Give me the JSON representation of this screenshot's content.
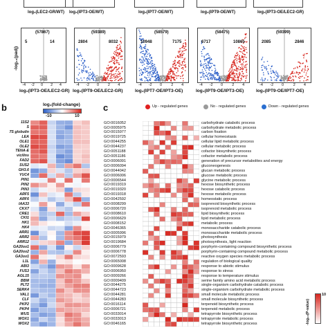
{
  "panel_a": {
    "top_row_labels": [
      {
        "text": "log₂(LEC2-GR/WT)"
      },
      {
        "text": "log₂(IPT3-OE/WT)"
      },
      {
        "text": "log₂(IPT7-OE/WT)"
      },
      {
        "text": "log₂(IPT9-OE/WT)"
      },
      {
        "text": "log₂(IPT3-OE/LEC2-GR)"
      }
    ],
    "y_axis_label": "-log₁₀(padj)",
    "volcanoes": [
      {
        "total": "(57867)",
        "down": "5",
        "up": "14",
        "xlabel": "log₂(IPT3-OE/LEC2-GR)",
        "xticks": [
          "-4",
          "-2",
          "0",
          "2",
          "4"
        ]
      },
      {
        "total": "(59389)",
        "down": "2804",
        "up": "8032",
        "xlabel": "log₂(IPT9-OE/LEC2-GR)",
        "xticks": [
          "-4",
          "-2",
          "0",
          "2",
          "4"
        ]
      },
      {
        "total": "(58579)",
        "down": "10948",
        "up": "7175",
        "xlabel": "log₂(IPT7-OE/IPT3-OE)",
        "xticks": [
          "-4",
          "-2",
          "0",
          "2",
          "4"
        ]
      },
      {
        "total": "(58475)",
        "down": "6717",
        "up": "10865",
        "xlabel": "log₂(IPT9-OE/IPT3-OE)",
        "xticks": [
          "-4",
          "-2",
          "0",
          "2",
          "4"
        ]
      },
      {
        "total": "(59399)",
        "down": "2085",
        "up": "2846",
        "xlabel": "log₂(IPT9-OE/IPT7-OE)",
        "xticks": [
          "-4",
          "-2",
          "0",
          "2",
          "4"
        ]
      }
    ]
  },
  "panel_b": {
    "letter": "b",
    "scale_title": "log₂(fold-change)",
    "scale_ticks": [
      "-10",
      "0",
      "10"
    ],
    "genes": [
      "11S2",
      "S",
      "7S globulin",
      "LEA",
      "OLE1",
      "OLE2",
      "TENA-E",
      "vicilins",
      "FAD2",
      "SUS2",
      "GH3.6",
      "YUC4",
      "PIN1",
      "PIN2",
      "PIN3",
      "ARF5",
      "ARF6",
      "IAA33",
      "CKX7",
      "CRE1",
      "CKI1",
      "HK1",
      "HK4",
      "ARR1",
      "ARR2",
      "ARR12",
      "GA20ox1",
      "GA20ox2",
      "GA3ox1",
      "L1L",
      "ABI3",
      "FUS3",
      "AGL15",
      "BBM",
      "PLT2",
      "SERK4",
      "VAL1",
      "CLF",
      "PKP2",
      "PKP4",
      "WUS",
      "WOX1",
      "WOX2"
    ]
  },
  "panel_c": {
    "letter": "c",
    "legend": [
      {
        "label": "Up - regulated genes",
        "color": "#e02020"
      },
      {
        "label": "No - regulated genes",
        "color": "#9a9a9a"
      },
      {
        "label": "Down - regulated genes",
        "color": "#2a6fd0"
      }
    ],
    "scale_title": "-log₁₀(P-value)",
    "scale_ticks": [
      "0",
      "10"
    ],
    "go_terms": [
      {
        "id": "GO:0016052",
        "desc": "carbohydrate catabolic process"
      },
      {
        "id": "GO:0005975",
        "desc": "carbohydrate metabolic process"
      },
      {
        "id": "GO:0015977",
        "desc": "carbon fixation"
      },
      {
        "id": "GO:0019725",
        "desc": "cellular homeostasis"
      },
      {
        "id": "GO:0044255",
        "desc": "cellular lipid metabolic process"
      },
      {
        "id": "GO:0044237",
        "desc": "cellular metabolic process"
      },
      {
        "id": "GO:0051188",
        "desc": "cofactor biosynthetic process"
      },
      {
        "id": "GO:0051186",
        "desc": "cofactor metabolic process"
      },
      {
        "id": "GO:0006091",
        "desc": "generation of precursor metabolites and energy"
      },
      {
        "id": "GO:0006094",
        "desc": "gluconeogenesis"
      },
      {
        "id": "GO:0044042",
        "desc": "glucan metabolic process"
      },
      {
        "id": "GO:0006006",
        "desc": "glucose metabolic process"
      },
      {
        "id": "GO:0006544",
        "desc": "glycine metabolic process"
      },
      {
        "id": "GO:0019319",
        "desc": "hexose biosynthetic process"
      },
      {
        "id": "GO:0019320",
        "desc": "hexose catabolic process"
      },
      {
        "id": "GO:0019318",
        "desc": "hexose metabolic process"
      },
      {
        "id": "GO:0042592",
        "desc": "homeostatic process"
      },
      {
        "id": "GO:0008299",
        "desc": "isoprenoid biosynthetic process"
      },
      {
        "id": "GO:0006720",
        "desc": "isoprenoid metabolic process"
      },
      {
        "id": "GO:0008610",
        "desc": "lipid biosynthetic process"
      },
      {
        "id": "GO:0006629",
        "desc": "lipid metabolic process"
      },
      {
        "id": "GO:0008152",
        "desc": "metabolic process"
      },
      {
        "id": "GO:0046365",
        "desc": "monosaccharide catabolic process"
      },
      {
        "id": "GO:0005996",
        "desc": "monosaccharide metabolic process"
      },
      {
        "id": "GO:0015979",
        "desc": "photosynthesis"
      },
      {
        "id": "GO:0019684",
        "desc": "photosynthesis, light reaction"
      },
      {
        "id": "GO:0006779",
        "desc": "porphyrin-containing compound biosynthetic process"
      },
      {
        "id": "GO:0006778",
        "desc": "porphyrin-containing compound metabolic process"
      },
      {
        "id": "GO:0072593",
        "desc": "reactive oxygen species metabolic process"
      },
      {
        "id": "GO:0065008",
        "desc": "regulation of biological quality"
      },
      {
        "id": "GO:0009628",
        "desc": "response to abiotic stimulus"
      },
      {
        "id": "GO:0006950",
        "desc": "response to stress"
      },
      {
        "id": "GO:0009266",
        "desc": "response to temperature stimulus"
      },
      {
        "id": "GO:0009409",
        "desc": "serine family amino acid metabolic process"
      },
      {
        "id": "GO:0044275",
        "desc": "single-organism carbohydrate catabolic process"
      },
      {
        "id": "GO:0044723",
        "desc": "single-organism carbohydrate metabolic process"
      },
      {
        "id": "GO:0044281",
        "desc": "small molecule metabolic process"
      },
      {
        "id": "GO:0044283",
        "desc": "small molecule biosynthetic process"
      },
      {
        "id": "GO:0016114",
        "desc": "terpenoid biosynthetic process"
      },
      {
        "id": "GO:0006721",
        "desc": "terpenoid metabolic process"
      },
      {
        "id": "GO:0033014",
        "desc": "tetrapyrrole biosynthetic process"
      },
      {
        "id": "GO:0033013",
        "desc": "tetrapyrrole metabolic process"
      },
      {
        "id": "GO:0046165",
        "desc": "tetrapyrrole biosynthetic process"
      }
    ]
  },
  "colors": {
    "red": "#d7261e",
    "blue": "#2c5fc8",
    "white": "#ffffff",
    "grid": "#bdbdbd"
  }
}
